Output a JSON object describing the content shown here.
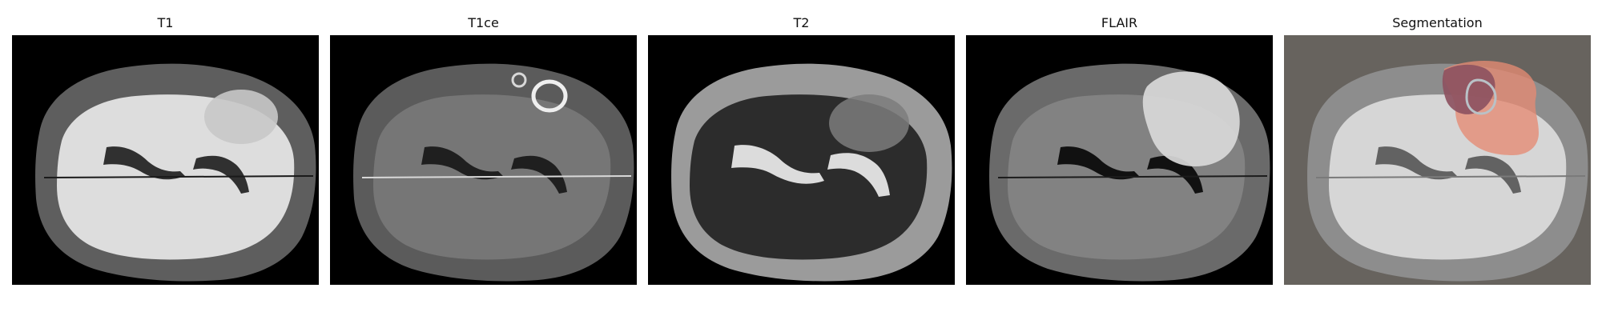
{
  "panels": [
    {
      "title": "T1",
      "kind": "t1"
    },
    {
      "title": "T1ce",
      "kind": "t1ce"
    },
    {
      "title": "T2",
      "kind": "t2"
    },
    {
      "title": "FLAIR",
      "kind": "flair"
    },
    {
      "title": "Segmentation",
      "kind": "segmentation"
    }
  ],
  "colors": {
    "background": "#000000",
    "segmentation_background": "#67635e",
    "tumor_edema": "#e68a73",
    "tumor_core": "#8d5361",
    "tumor_enhancing": "#b9c2c7"
  }
}
